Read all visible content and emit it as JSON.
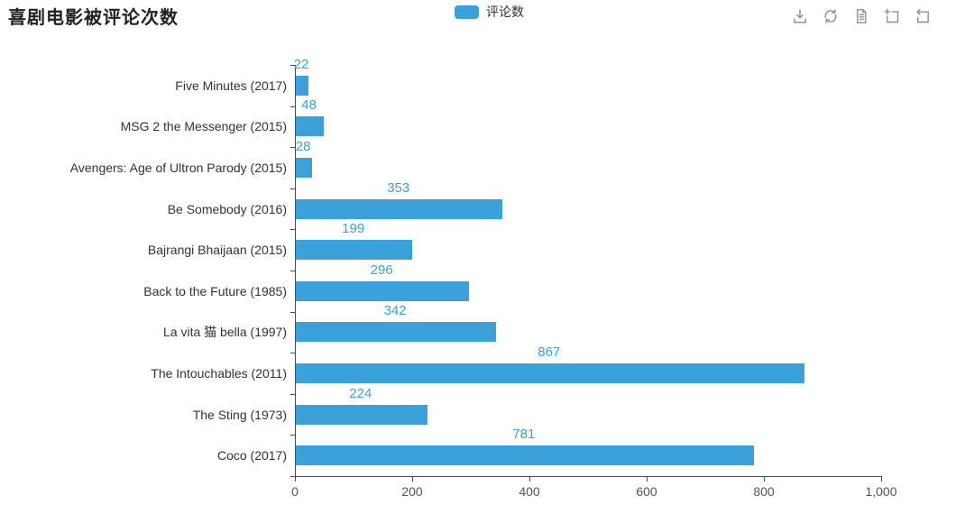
{
  "header": {
    "title": "喜剧电影被评论次数",
    "legend": {
      "label": "评论数",
      "color": "#3AA1DB"
    },
    "toolbar": [
      {
        "name": "save-as-image-icon"
      },
      {
        "name": "restore-icon"
      },
      {
        "name": "data-view-icon"
      },
      {
        "name": "data-zoom-icon"
      },
      {
        "name": "data-zoom-reset-icon"
      }
    ]
  },
  "chart_data": {
    "type": "bar",
    "orientation": "horizontal",
    "title": "喜剧电影被评论次数",
    "series": [
      {
        "name": "评论数",
        "values": [
          22,
          48,
          28,
          353,
          199,
          296,
          342,
          867,
          224,
          781
        ]
      }
    ],
    "categories_top_to_bottom": [
      "Five Minutes (2017)",
      "MSG 2 the Messenger (2015)",
      "Avengers: Age of Ultron Parody (2015)",
      "Be Somebody (2016)",
      "Bajrangi Bhaijaan (2015)",
      "Back to the Future (1985)",
      "La vita 猫 bella (1997)",
      "The Intouchables (2011)",
      "The Sting (1973)",
      "Coco (2017)"
    ],
    "xlabel": "",
    "ylabel": "",
    "xlim": [
      0,
      1000
    ],
    "x_tick_values": [
      0,
      200,
      400,
      600,
      800,
      1000
    ],
    "x_tick_labels": [
      "0",
      "200",
      "400",
      "600",
      "800",
      "1,000"
    ],
    "bar_color": "#3AA1DB",
    "value_label_color": "#3AA1DB",
    "value_label_position": "top",
    "axis_color": "#4c4c4c",
    "grid": false,
    "legend_position": "top-center"
  }
}
